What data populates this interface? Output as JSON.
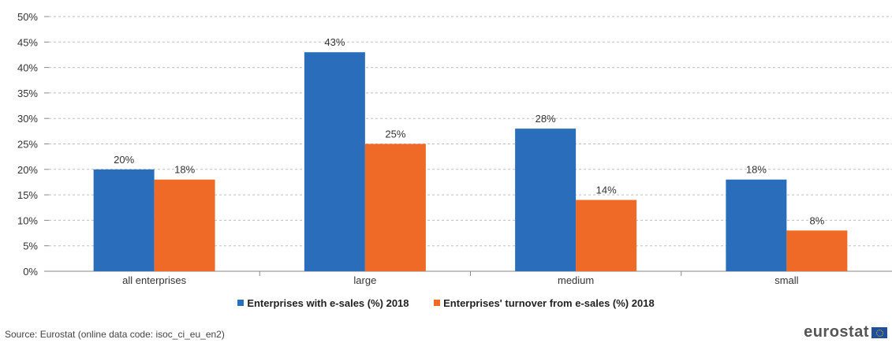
{
  "chart_data": {
    "type": "bar",
    "categories": [
      "all enterprises",
      "large",
      "medium",
      "small"
    ],
    "series": [
      {
        "name": "Enterprises with e-sales (%) 2018",
        "color": "#2a6ebb",
        "values": [
          20,
          43,
          28,
          18
        ]
      },
      {
        "name": "Enterprises' turnover from e-sales (%) 2018",
        "color": "#ee6a26",
        "values": [
          18,
          25,
          14,
          8
        ]
      }
    ],
    "ylim": [
      0,
      50
    ],
    "yticks": [
      "0%",
      "5%",
      "10%",
      "15%",
      "20%",
      "25%",
      "30%",
      "35%",
      "40%",
      "45%",
      "50%"
    ],
    "value_suffix": "%",
    "grid": "dashed horizontal",
    "legend_position": "bottom"
  },
  "source": "Source: Eurostat (online data code: isoc_ci_eu_en2)",
  "logo": {
    "text": "eurostat",
    "icon": "eu-flag-icon"
  }
}
